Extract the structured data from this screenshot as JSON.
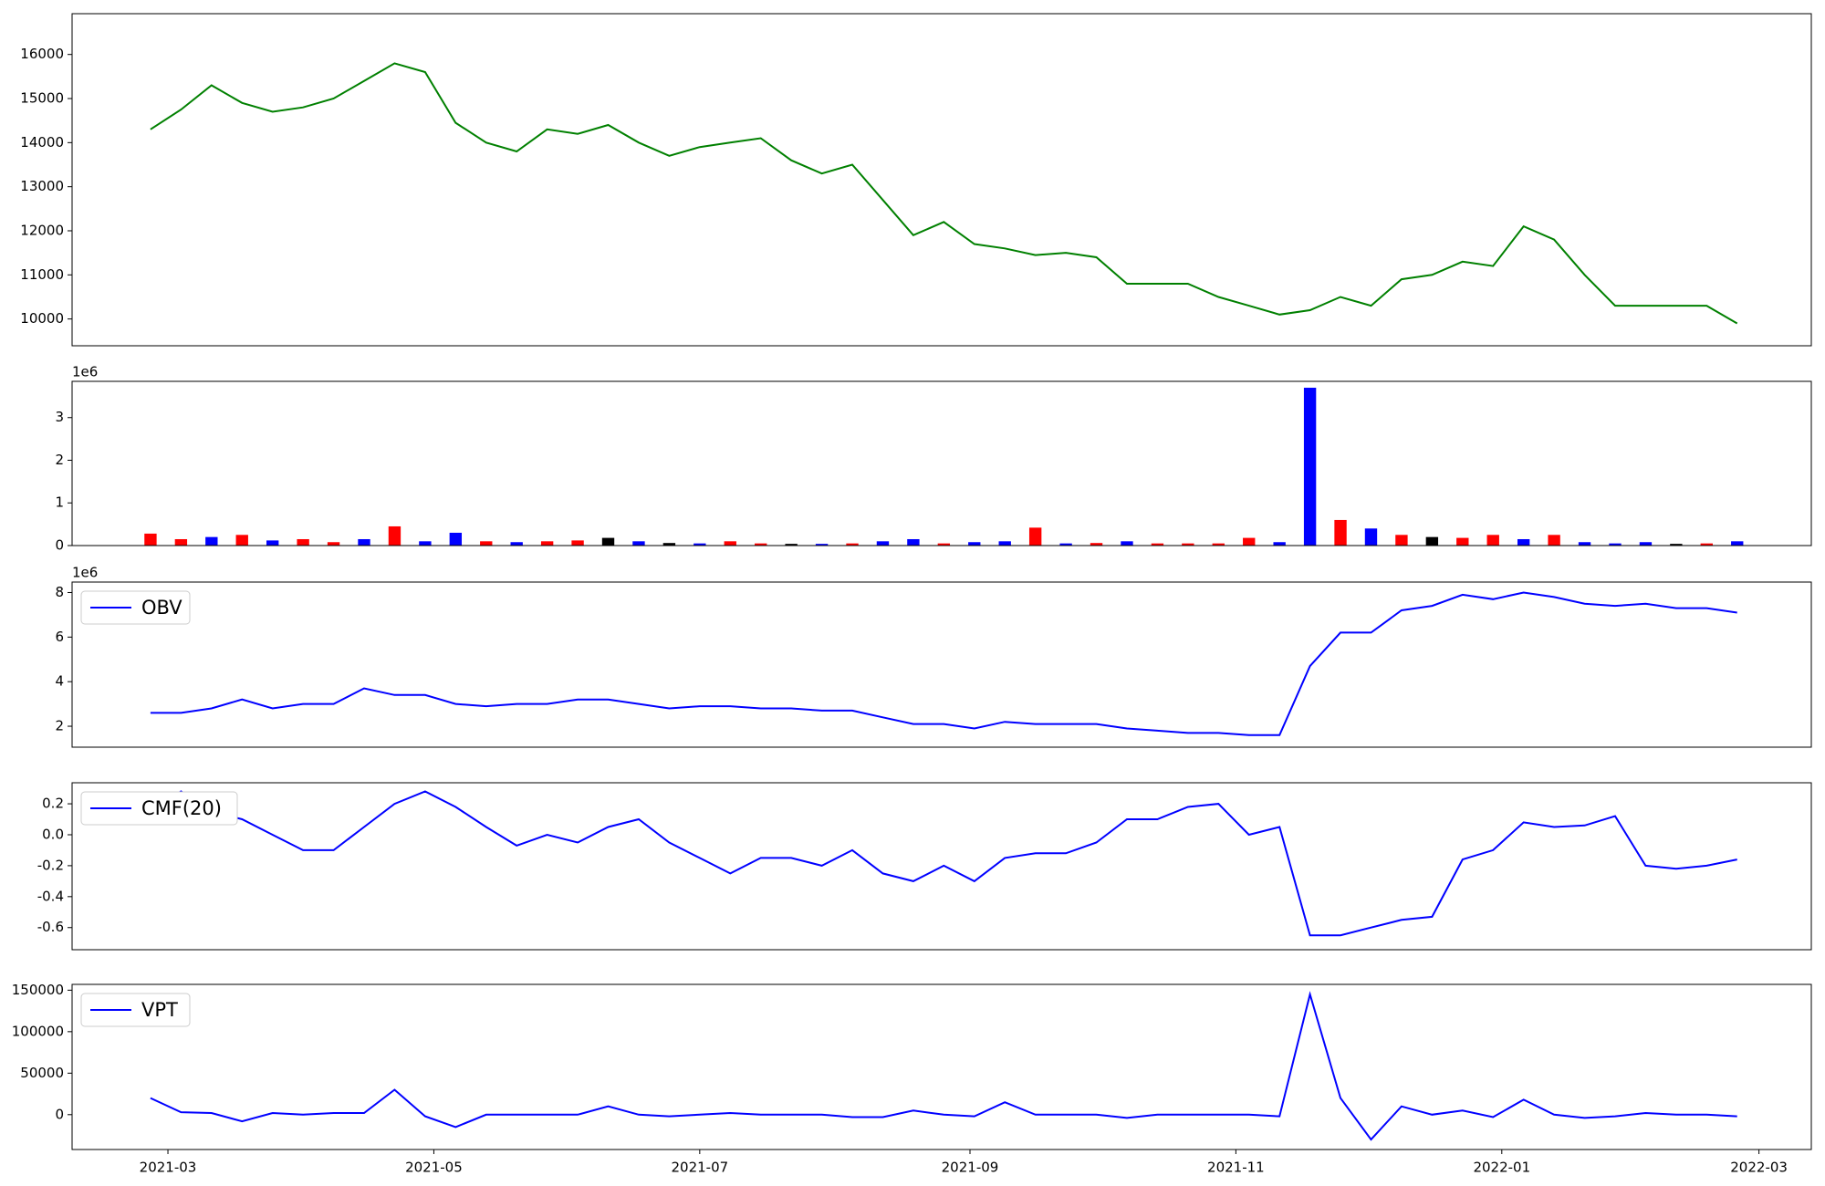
{
  "chart_data": [
    {
      "type": "line",
      "color": "#008000",
      "xlim": [
        -2.57,
        54.43
      ],
      "ylim": [
        9392,
        16925
      ],
      "yticks": [
        10000,
        11000,
        12000,
        13000,
        14000,
        15000,
        16000
      ],
      "values": [
        14300,
        14750,
        15300,
        14900,
        14700,
        14800,
        15000,
        15400,
        15800,
        15600,
        14450,
        14000,
        13800,
        14300,
        14200,
        14400,
        14000,
        13700,
        13900,
        14000,
        14100,
        13600,
        13300,
        13500,
        12700,
        11900,
        12200,
        11700,
        11600,
        11450,
        11500,
        11400,
        10800,
        10800,
        10800,
        10500,
        10300,
        10100,
        10200,
        10500,
        10300,
        10900,
        11000,
        11300,
        11200,
        12100,
        11800,
        11000,
        10300,
        10300,
        10300,
        10300,
        9900
      ]
    },
    {
      "type": "bar",
      "offset_text": "1e6",
      "xlim": [
        -2.57,
        54.43
      ],
      "ylim": [
        0,
        3.85
      ],
      "yticks": [
        0,
        1,
        2,
        3
      ],
      "values": [
        0.28,
        0.15,
        0.2,
        0.25,
        0.12,
        0.15,
        0.08,
        0.15,
        0.45,
        0.1,
        0.3,
        0.1,
        0.08,
        0.1,
        0.12,
        0.18,
        0.1,
        0.06,
        0.05,
        0.1,
        0.05,
        0.04,
        0.04,
        0.05,
        0.1,
        0.15,
        0.05,
        0.08,
        0.1,
        0.42,
        0.05,
        0.06,
        0.1,
        0.05,
        0.05,
        0.05,
        0.18,
        0.08,
        3.7,
        0.6,
        0.4,
        0.25,
        0.2,
        0.18,
        0.25,
        0.15,
        0.25,
        0.08,
        0.05,
        0.08,
        0.04,
        0.05,
        0.1
      ],
      "colors": [
        "#ff0000",
        "#ff0000",
        "#0000ff",
        "#ff0000",
        "#0000ff",
        "#ff0000",
        "#ff0000",
        "#0000ff",
        "#ff0000",
        "#0000ff",
        "#0000ff",
        "#ff0000",
        "#0000ff",
        "#ff0000",
        "#ff0000",
        "#000000",
        "#0000ff",
        "#000000",
        "#0000ff",
        "#ff0000",
        "#ff0000",
        "#000000",
        "#0000ff",
        "#ff0000",
        "#0000ff",
        "#0000ff",
        "#ff0000",
        "#0000ff",
        "#0000ff",
        "#ff0000",
        "#0000ff",
        "#ff0000",
        "#0000ff",
        "#ff0000",
        "#ff0000",
        "#ff0000",
        "#ff0000",
        "#0000ff",
        "#0000ff",
        "#ff0000",
        "#0000ff",
        "#ff0000",
        "#000000",
        "#ff0000",
        "#ff0000",
        "#0000ff",
        "#ff0000",
        "#0000ff",
        "#0000ff",
        "#0000ff",
        "#000000",
        "#ff0000",
        "#0000ff"
      ]
    },
    {
      "type": "line",
      "offset_text": "1e6",
      "legend": "upper left",
      "xlim": [
        -2.57,
        54.43
      ],
      "ylim": [
        1.06,
        8.47
      ],
      "yticks": [
        2,
        4,
        6,
        8
      ],
      "series": [
        {
          "name": "OBV",
          "color": "#0000ff",
          "values": [
            2.6,
            2.6,
            2.8,
            3.2,
            2.8,
            3.0,
            3.0,
            3.7,
            3.4,
            3.4,
            3.0,
            2.9,
            3.0,
            3.0,
            3.2,
            3.2,
            3.0,
            2.8,
            2.9,
            2.9,
            2.8,
            2.8,
            2.7,
            2.7,
            2.4,
            2.1,
            2.1,
            1.9,
            2.2,
            2.1,
            2.1,
            2.1,
            1.9,
            1.8,
            1.7,
            1.7,
            1.6,
            1.6,
            4.7,
            6.2,
            6.2,
            7.2,
            7.4,
            7.9,
            7.7,
            8.0,
            7.8,
            7.5,
            7.4,
            7.5,
            7.3,
            7.3,
            7.1
          ]
        }
      ]
    },
    {
      "type": "line",
      "legend": "upper left",
      "xlim": [
        -2.57,
        54.43
      ],
      "ylim": [
        -0.743,
        0.336
      ],
      "yticks": [
        -0.6,
        -0.4,
        -0.2,
        {
          "value": 0,
          "label": "0.0"
        },
        0.2
      ],
      "series": [
        {
          "name": "CMF(20)",
          "color": "#0000ff",
          "values": [
            0.15,
            0.28,
            0.15,
            0.1,
            0.0,
            -0.1,
            -0.1,
            0.05,
            0.2,
            0.28,
            0.18,
            0.05,
            -0.07,
            0.0,
            -0.05,
            0.05,
            0.1,
            -0.05,
            -0.15,
            -0.25,
            -0.15,
            -0.15,
            -0.2,
            -0.1,
            -0.25,
            -0.3,
            -0.2,
            -0.3,
            -0.15,
            -0.12,
            -0.12,
            -0.05,
            0.1,
            0.1,
            0.18,
            0.2,
            0.0,
            0.05,
            -0.65,
            -0.65,
            -0.6,
            -0.55,
            -0.53,
            -0.16,
            -0.1,
            0.08,
            0.05,
            0.06,
            0.12,
            -0.2,
            -0.22,
            -0.2,
            -0.16
          ]
        }
      ]
    },
    {
      "type": "line",
      "legend": "upper left",
      "xlim": [
        -2.57,
        54.43
      ],
      "ylim": [
        -42000,
        157000
      ],
      "yticks": [
        0,
        50000,
        100000,
        150000
      ],
      "xticks": [
        {
          "value": 0.571,
          "label": "2021-03"
        },
        {
          "value": 9.286,
          "label": "2021-05"
        },
        {
          "value": 18.0,
          "label": "2021-07"
        },
        {
          "value": 26.857,
          "label": "2021-09"
        },
        {
          "value": 35.571,
          "label": "2021-11"
        },
        {
          "value": 44.286,
          "label": "2022-01"
        },
        {
          "value": 52.714,
          "label": "2022-03"
        }
      ],
      "series": [
        {
          "name": "VPT",
          "color": "#0000ff",
          "values": [
            20000,
            3000,
            2000,
            -8000,
            2000,
            0,
            2000,
            2000,
            30000,
            -2000,
            -15000,
            0,
            0,
            0,
            0,
            10000,
            0,
            -2000,
            0,
            2000,
            0,
            0,
            0,
            -3000,
            -3000,
            5000,
            0,
            -2000,
            15000,
            0,
            0,
            0,
            -4000,
            0,
            0,
            0,
            0,
            -2000,
            145000,
            20000,
            -30000,
            10000,
            0,
            5000,
            -3000,
            18000,
            0,
            -4000,
            -2000,
            2000,
            0,
            0,
            -2000
          ]
        }
      ]
    }
  ]
}
